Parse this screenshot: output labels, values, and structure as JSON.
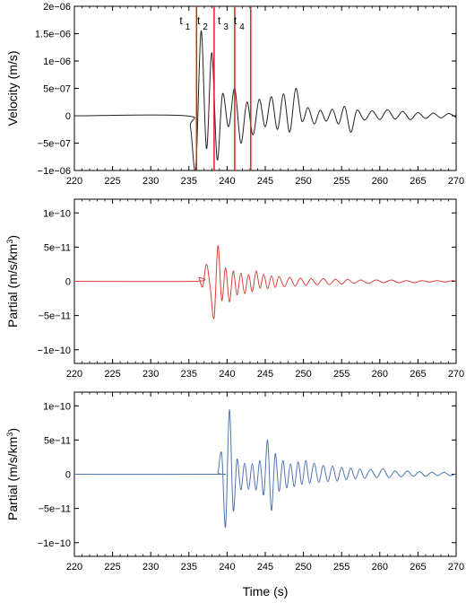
{
  "chart_data": [
    {
      "type": "line",
      "ylabel": "Velocity (m/s)",
      "xlabel": "",
      "xlim": [
        220,
        270
      ],
      "ylim": [
        -1e-06,
        2e-06
      ],
      "x_ticks": [
        220,
        225,
        230,
        235,
        240,
        245,
        250,
        255,
        260,
        265,
        270
      ],
      "y_ticks": [
        {
          "value": -1e-06,
          "label": "−1e−06"
        },
        {
          "value": -5e-07,
          "label": "−5e−07"
        },
        {
          "value": 0,
          "label": "0"
        },
        {
          "value": 5e-07,
          "label": "5e−07"
        },
        {
          "value": 1e-06,
          "label": "1e−06"
        },
        {
          "value": 1.5e-06,
          "label": "1.5e−06"
        },
        {
          "value": 2e-06,
          "label": "2e−06"
        }
      ],
      "color": "#222222",
      "series": [
        {
          "x": [
            220,
            234.5,
            235.2,
            235.9,
            236.6,
            237.3,
            238.0,
            238.7,
            239.4,
            240.2,
            241.0,
            241.8,
            242.6,
            243.4,
            244.2,
            245.0,
            245.8,
            246.6,
            247.4,
            248.2,
            249.0,
            249.8,
            250.6,
            251.4,
            252.2,
            253.0,
            253.8,
            254.6,
            255.4,
            256.2,
            257.0,
            258.0,
            259.0,
            260.0,
            261.0,
            262.0,
            263.0,
            264.0,
            265.0,
            266.0,
            267.0,
            268.0,
            269.0,
            270.0
          ],
          "y": [
            0,
            0,
            -2e-07,
            -9.5e-07,
            1.55e-06,
            -6e-07,
            1.15e-06,
            -8e-07,
            4e-07,
            -2e-07,
            5e-07,
            -5e-07,
            2.5e-07,
            -3.5e-07,
            3e-07,
            -2e-07,
            3.5e-07,
            -2.5e-07,
            4e-07,
            -3e-07,
            5e-07,
            -1e-07,
            1.5e-07,
            -1.5e-07,
            1e-07,
            -1e-07,
            1.2e-07,
            -1.5e-07,
            1.7e-07,
            -3e-07,
            1e-07,
            -8e-08,
            9e-08,
            -7e-08,
            1.1e-07,
            -6e-08,
            8e-08,
            -7e-08,
            6e-08,
            -5e-08,
            5e-08,
            -4e-08,
            4e-08,
            -3e-08
          ]
        }
      ],
      "markers": [
        {
          "label": "t",
          "sub": "1",
          "x": 236.0
        },
        {
          "label": "t",
          "sub": "2",
          "x": 238.3
        },
        {
          "label": "t",
          "sub": "3",
          "x": 241.0
        },
        {
          "label": "t",
          "sub": "4",
          "x": 243.1
        }
      ],
      "marker_color": "#e0201b"
    },
    {
      "type": "line",
      "ylabel": "Partial (m/s/km",
      "ylabel_sup": "3",
      "ylabel_end": ")",
      "xlabel": "",
      "xlim": [
        220,
        270
      ],
      "ylim": [
        -1.2e-10,
        1.2e-10
      ],
      "x_ticks": [
        220,
        225,
        230,
        235,
        240,
        245,
        250,
        255,
        260,
        265,
        270
      ],
      "y_ticks": [
        {
          "value": -1e-10,
          "label": "−1e−10"
        },
        {
          "value": -5e-11,
          "label": "−5e−11"
        },
        {
          "value": 0,
          "label": "0"
        },
        {
          "value": 5e-11,
          "label": "5e−11"
        },
        {
          "value": 1e-10,
          "label": "1e−10"
        }
      ],
      "color": "#d9403a",
      "series": [
        {
          "x": [
            220,
            235.8,
            236.3,
            236.8,
            237.3,
            237.8,
            238.3,
            238.8,
            239.3,
            239.8,
            240.3,
            240.8,
            241.3,
            241.8,
            242.3,
            242.8,
            243.3,
            243.8,
            244.3,
            244.8,
            245.3,
            245.8,
            246.3,
            246.8,
            247.5,
            248.2,
            248.9,
            249.6,
            250.3,
            251.0,
            251.8,
            252.6,
            253.4,
            254.2,
            255.0,
            255.8,
            256.6,
            257.5,
            258.5,
            259.5,
            260.5,
            261.5,
            262.5,
            263.5,
            264.5,
            265.5,
            266.5,
            267.5,
            268.5,
            269.5,
            270.0
          ],
          "y": [
            0,
            0,
            5e-12,
            -8e-12,
            2.5e-11,
            -1e-11,
            -5.3e-11,
            5.2e-11,
            -2.8e-11,
            2e-11,
            -3e-11,
            1.5e-11,
            -2e-11,
            1.2e-11,
            -1.8e-11,
            1e-11,
            -1.5e-11,
            1.5e-11,
            -1e-11,
            1e-11,
            -1.1e-11,
            8e-12,
            -9e-12,
            7e-12,
            -8e-12,
            6e-12,
            -7e-12,
            5e-12,
            -6e-12,
            4e-12,
            -5e-12,
            4e-12,
            -5e-12,
            3e-12,
            -4e-12,
            3e-12,
            -3e-12,
            2e-12,
            -3e-12,
            2e-12,
            -2e-12,
            2e-12,
            -2e-12,
            1e-12,
            -2e-12,
            1e-12,
            -1e-12,
            1e-12,
            -1e-12,
            1e-12,
            0
          ]
        }
      ]
    },
    {
      "type": "line",
      "ylabel": "Partial (m/s/km",
      "ylabel_sup": "3",
      "ylabel_end": ")",
      "xlabel": "Time (s)",
      "xlim": [
        220,
        270
      ],
      "ylim": [
        -1.2e-10,
        1.2e-10
      ],
      "x_ticks": [
        220,
        225,
        230,
        235,
        240,
        245,
        250,
        255,
        260,
        265,
        270
      ],
      "y_ticks": [
        {
          "value": -1e-10,
          "label": "−1e−10"
        },
        {
          "value": -5e-11,
          "label": "−5e−11"
        },
        {
          "value": 0,
          "label": "0"
        },
        {
          "value": 5e-11,
          "label": "5e−11"
        },
        {
          "value": 1e-10,
          "label": "1e−10"
        }
      ],
      "color": "#4f74b0",
      "series": [
        {
          "x": [
            220,
            238.3,
            238.8,
            239.3,
            239.8,
            240.3,
            240.8,
            241.3,
            241.8,
            242.3,
            242.8,
            243.3,
            243.8,
            244.3,
            244.8,
            245.3,
            245.8,
            246.3,
            246.8,
            247.3,
            247.8,
            248.3,
            248.8,
            249.3,
            249.8,
            250.3,
            250.8,
            251.4,
            252.0,
            252.6,
            253.2,
            253.8,
            254.4,
            255.0,
            255.6,
            256.2,
            256.8,
            257.4,
            258.0,
            258.8,
            259.6,
            260.4,
            261.2,
            262.0,
            262.8,
            263.6,
            264.4,
            265.2,
            266.0,
            266.8,
            267.6,
            268.4,
            269.2,
            270.0
          ],
          "y": [
            0,
            0,
            3e-12,
            3e-11,
            -7.7e-11,
            9.4e-11,
            -5.3e-11,
            2.2e-11,
            -2.3e-11,
            1.6e-11,
            -2.2e-11,
            1.5e-11,
            -2.3e-11,
            2e-11,
            -3e-11,
            5e-11,
            -5.3e-11,
            3e-11,
            -2.5e-11,
            2e-11,
            -2e-11,
            1.5e-11,
            -1.8e-11,
            1.8e-11,
            -1.5e-11,
            2e-11,
            -1.3e-11,
            1.6e-11,
            -1.2e-11,
            1.3e-11,
            -1.1e-11,
            1.2e-11,
            -1e-11,
            1e-11,
            -8e-12,
            9e-12,
            -7e-12,
            8e-12,
            -6e-12,
            7e-12,
            -5e-12,
            8e-12,
            -5e-12,
            5e-12,
            -4e-12,
            5e-12,
            -3e-12,
            4e-12,
            -3e-12,
            3e-12,
            -2e-12,
            3e-12,
            -2e-12,
            1e-12
          ]
        }
      ]
    }
  ]
}
